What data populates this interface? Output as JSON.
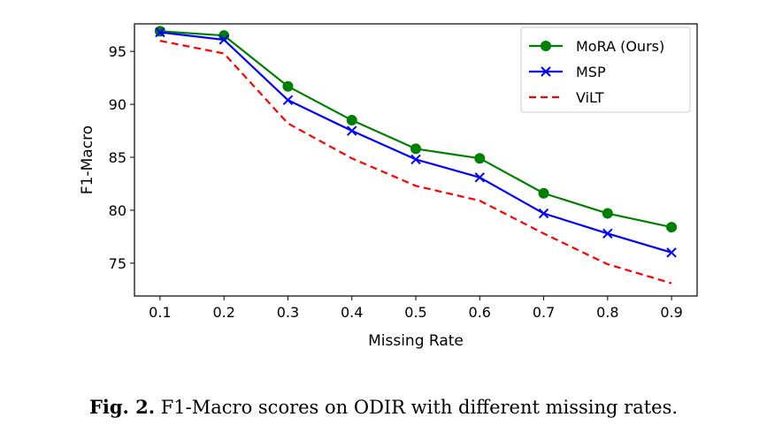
{
  "chart_data": {
    "type": "line",
    "x": [
      0.1,
      0.2,
      0.3,
      0.4,
      0.5,
      0.6,
      0.7,
      0.8,
      0.9
    ],
    "x_tick_labels": [
      "0.1",
      "0.2",
      "0.3",
      "0.4",
      "0.5",
      "0.6",
      "0.7",
      "0.8",
      "0.9"
    ],
    "y_ticks": [
      75,
      80,
      85,
      90,
      95
    ],
    "xlabel": "Missing Rate",
    "ylabel": "F1-Macro",
    "xlim": [
      0.06,
      0.94
    ],
    "ylim": [
      71.9,
      97.6
    ],
    "grid": false,
    "legend_position": "top-right",
    "series": [
      {
        "name": "MoRA (Ours)",
        "color": "#008000",
        "marker": "circle",
        "linestyle": "solid",
        "values": [
          96.9,
          96.5,
          91.7,
          88.5,
          85.8,
          84.9,
          81.6,
          79.7,
          78.4
        ]
      },
      {
        "name": "MSP",
        "color": "#0000ff",
        "marker": "x",
        "linestyle": "solid",
        "values": [
          96.8,
          96.1,
          90.4,
          87.5,
          84.8,
          83.1,
          79.7,
          77.8,
          76.0
        ]
      },
      {
        "name": "ViLT",
        "color": "#ff0000",
        "marker": "none",
        "linestyle": "dashed",
        "values": [
          96.0,
          94.8,
          88.2,
          84.9,
          82.3,
          80.9,
          77.8,
          74.9,
          73.1
        ]
      }
    ]
  },
  "caption": {
    "label": "Fig. 2.",
    "text": " F1-Macro scores on ODIR with different missing rates."
  }
}
